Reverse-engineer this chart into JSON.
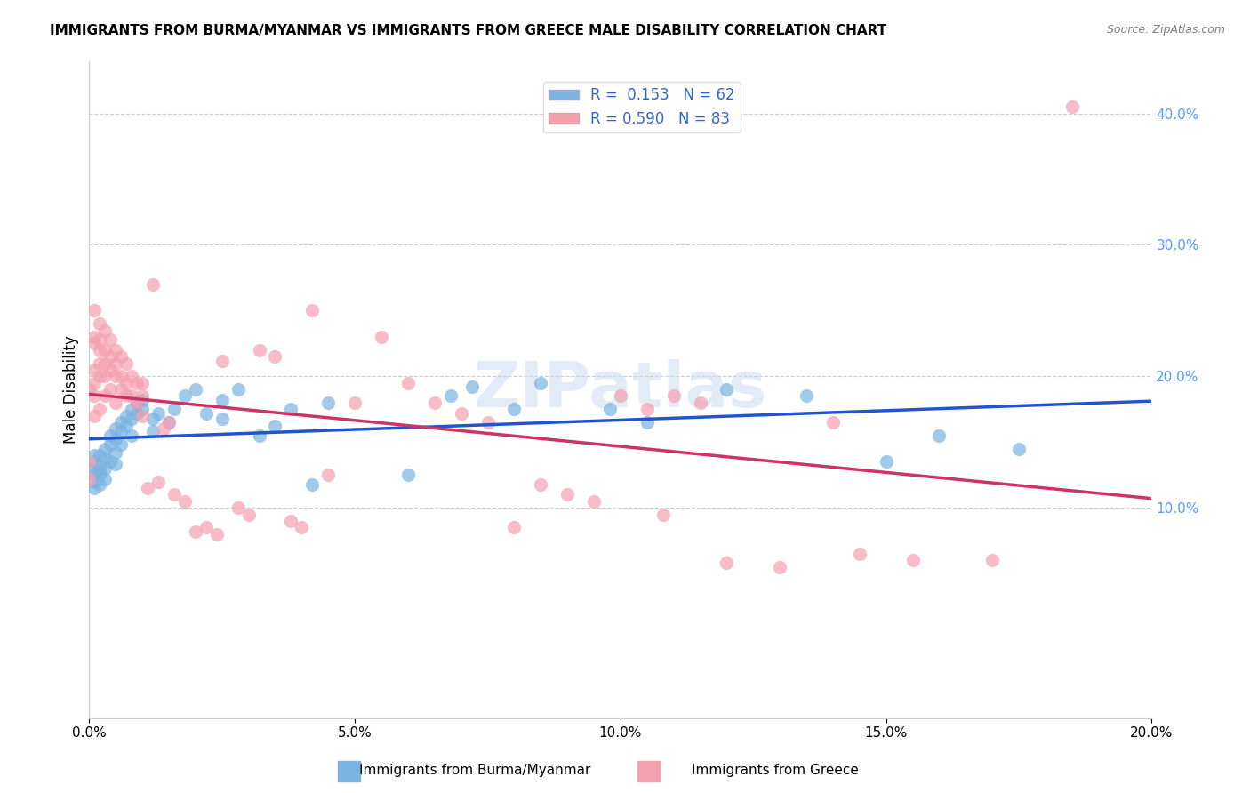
{
  "title": "IMMIGRANTS FROM BURMA/MYANMAR VS IMMIGRANTS FROM GREECE MALE DISABILITY CORRELATION CHART",
  "source": "Source: ZipAtlas.com",
  "ylabel": "Male Disability",
  "xlabel": "",
  "watermark": "ZIPatlas",
  "blue_R": 0.153,
  "blue_N": 62,
  "pink_R": 0.59,
  "pink_N": 83,
  "blue_color": "#7ab3e0",
  "pink_color": "#f4a0b0",
  "blue_line_color": "#2255cc",
  "pink_line_color": "#cc3366",
  "legend_blue_label": "Immigrants from Burma/Myanmar",
  "legend_pink_label": "Immigrants from Greece",
  "xlim": [
    0.0,
    0.2
  ],
  "ylim": [
    -0.06,
    0.44
  ],
  "xticks": [
    0.0,
    0.05,
    0.1,
    0.15,
    0.2
  ],
  "yticks_right": [
    0.1,
    0.2,
    0.3,
    0.4
  ],
  "blue_x": [
    0.0,
    0.001,
    0.001,
    0.001,
    0.001,
    0.001,
    0.002,
    0.002,
    0.002,
    0.002,
    0.002,
    0.003,
    0.003,
    0.003,
    0.003,
    0.004,
    0.004,
    0.004,
    0.005,
    0.005,
    0.005,
    0.005,
    0.006,
    0.006,
    0.006,
    0.007,
    0.007,
    0.008,
    0.008,
    0.008,
    0.009,
    0.009,
    0.01,
    0.01,
    0.012,
    0.012,
    0.013,
    0.015,
    0.016,
    0.018,
    0.02,
    0.022,
    0.025,
    0.025,
    0.028,
    0.032,
    0.035,
    0.038,
    0.042,
    0.045,
    0.06,
    0.068,
    0.072,
    0.08,
    0.085,
    0.098,
    0.105,
    0.12,
    0.135,
    0.15,
    0.16,
    0.175
  ],
  "blue_y": [
    0.13,
    0.14,
    0.135,
    0.12,
    0.125,
    0.115,
    0.132,
    0.128,
    0.14,
    0.125,
    0.118,
    0.145,
    0.138,
    0.13,
    0.122,
    0.155,
    0.148,
    0.135,
    0.16,
    0.152,
    0.142,
    0.133,
    0.165,
    0.158,
    0.148,
    0.17,
    0.162,
    0.175,
    0.168,
    0.155,
    0.18,
    0.172,
    0.182,
    0.175,
    0.168,
    0.158,
    0.172,
    0.165,
    0.175,
    0.185,
    0.19,
    0.172,
    0.168,
    0.182,
    0.19,
    0.155,
    0.162,
    0.175,
    0.118,
    0.18,
    0.125,
    0.185,
    0.192,
    0.175,
    0.195,
    0.175,
    0.165,
    0.19,
    0.185,
    0.135,
    0.155,
    0.145
  ],
  "pink_x": [
    0.0,
    0.0,
    0.0,
    0.001,
    0.001,
    0.001,
    0.001,
    0.001,
    0.001,
    0.001,
    0.002,
    0.002,
    0.002,
    0.002,
    0.002,
    0.002,
    0.003,
    0.003,
    0.003,
    0.003,
    0.003,
    0.004,
    0.004,
    0.004,
    0.004,
    0.005,
    0.005,
    0.005,
    0.005,
    0.006,
    0.006,
    0.006,
    0.007,
    0.007,
    0.007,
    0.008,
    0.008,
    0.009,
    0.009,
    0.01,
    0.01,
    0.01,
    0.011,
    0.012,
    0.013,
    0.014,
    0.015,
    0.016,
    0.018,
    0.02,
    0.022,
    0.024,
    0.025,
    0.028,
    0.03,
    0.032,
    0.035,
    0.038,
    0.04,
    0.042,
    0.045,
    0.05,
    0.055,
    0.06,
    0.065,
    0.07,
    0.075,
    0.08,
    0.085,
    0.09,
    0.095,
    0.1,
    0.105,
    0.108,
    0.11,
    0.115,
    0.12,
    0.13,
    0.14,
    0.145,
    0.155,
    0.17,
    0.185
  ],
  "pink_y": [
    0.19,
    0.135,
    0.122,
    0.25,
    0.23,
    0.225,
    0.205,
    0.195,
    0.185,
    0.17,
    0.24,
    0.228,
    0.22,
    0.21,
    0.2,
    0.175,
    0.235,
    0.22,
    0.21,
    0.2,
    0.185,
    0.228,
    0.215,
    0.205,
    0.19,
    0.22,
    0.21,
    0.2,
    0.18,
    0.215,
    0.2,
    0.19,
    0.21,
    0.195,
    0.185,
    0.2,
    0.185,
    0.195,
    0.18,
    0.195,
    0.185,
    0.17,
    0.115,
    0.27,
    0.12,
    0.16,
    0.165,
    0.11,
    0.105,
    0.082,
    0.085,
    0.08,
    0.212,
    0.1,
    0.095,
    0.22,
    0.215,
    0.09,
    0.085,
    0.25,
    0.125,
    0.18,
    0.23,
    0.195,
    0.18,
    0.172,
    0.165,
    0.085,
    0.118,
    0.11,
    0.105,
    0.185,
    0.175,
    0.095,
    0.185,
    0.18,
    0.058,
    0.055,
    0.165,
    0.065,
    0.06,
    0.06,
    0.405
  ]
}
